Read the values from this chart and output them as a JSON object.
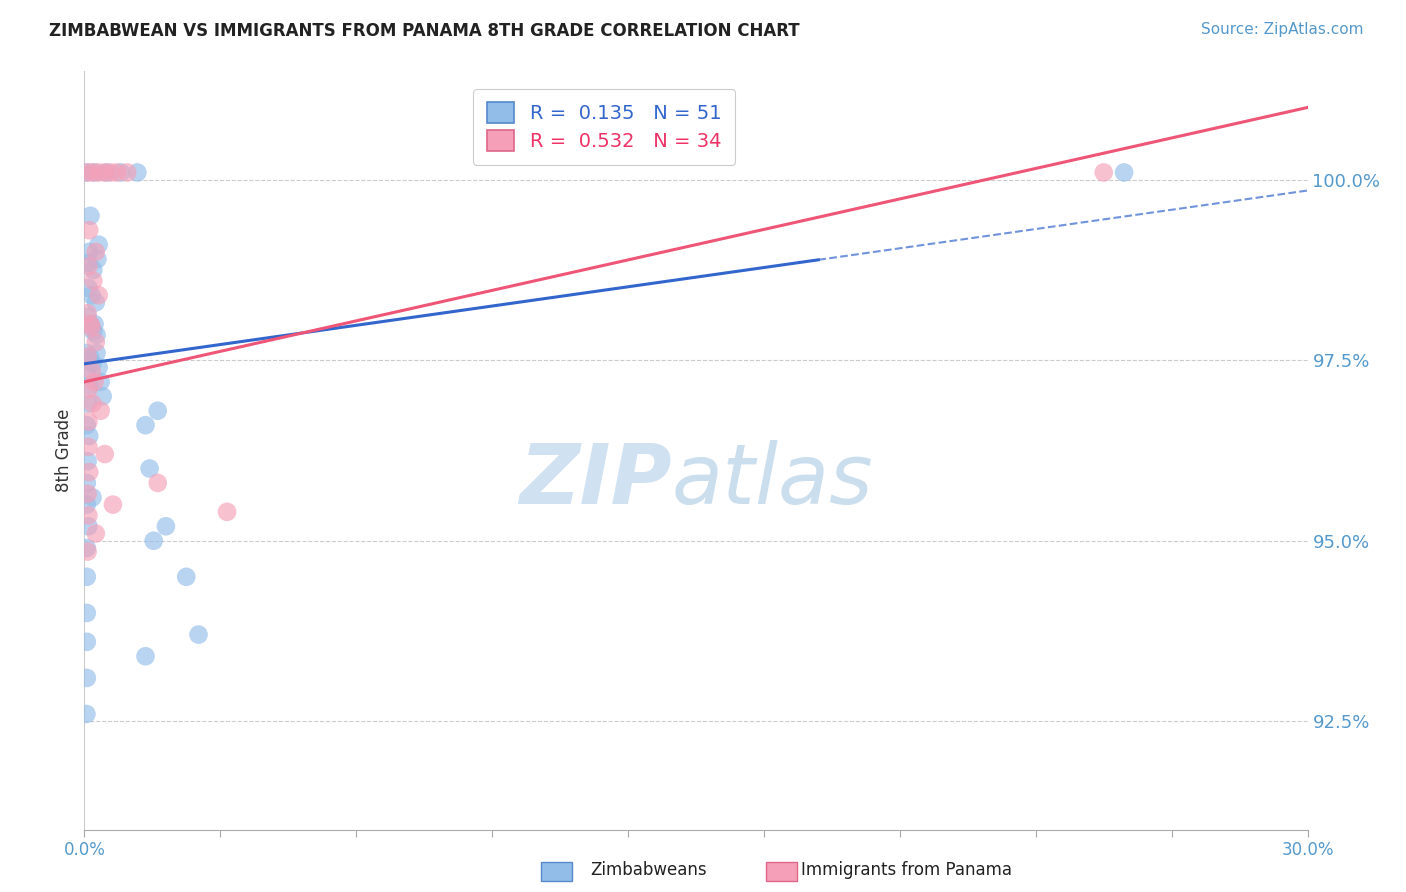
{
  "title": "ZIMBABWEAN VS IMMIGRANTS FROM PANAMA 8TH GRADE CORRELATION CHART",
  "source": "Source: ZipAtlas.com",
  "ylabel": "8th Grade",
  "yticks": [
    92.5,
    95.0,
    97.5,
    100.0
  ],
  "ytick_labels": [
    "92.5%",
    "95.0%",
    "97.5%",
    "100.0%"
  ],
  "xmin": 0.0,
  "xmax": 30.0,
  "ymin": 91.0,
  "ymax": 101.5,
  "blue_color": "#92BDE8",
  "pink_color": "#F5A0B8",
  "trend_blue": "#3366CC",
  "trend_pink": "#EE5577",
  "R_blue": 0.135,
  "N_blue": 51,
  "R_pink": 0.532,
  "N_pink": 34,
  "blue_trend_x": [
    0.0,
    30.0
  ],
  "blue_trend_y": [
    97.45,
    99.85
  ],
  "blue_dash_start": 18.0,
  "pink_trend_x": [
    0.0,
    30.0
  ],
  "pink_trend_y": [
    97.2,
    101.0
  ],
  "blue_points": [
    [
      0.05,
      100.1
    ],
    [
      0.25,
      100.1
    ],
    [
      0.55,
      100.1
    ],
    [
      0.9,
      100.1
    ],
    [
      1.3,
      100.1
    ],
    [
      0.15,
      99.5
    ],
    [
      0.12,
      99.0
    ],
    [
      0.35,
      99.1
    ],
    [
      0.1,
      98.85
    ],
    [
      0.22,
      98.75
    ],
    [
      0.32,
      98.9
    ],
    [
      0.1,
      98.5
    ],
    [
      0.18,
      98.4
    ],
    [
      0.28,
      98.3
    ],
    [
      0.08,
      98.1
    ],
    [
      0.15,
      98.0
    ],
    [
      0.22,
      97.9
    ],
    [
      0.3,
      97.85
    ],
    [
      0.06,
      97.6
    ],
    [
      0.14,
      97.55
    ],
    [
      0.2,
      97.45
    ],
    [
      0.06,
      97.3
    ],
    [
      0.12,
      97.15
    ],
    [
      0.08,
      96.9
    ],
    [
      0.06,
      96.6
    ],
    [
      0.12,
      96.45
    ],
    [
      0.08,
      96.1
    ],
    [
      0.06,
      95.8
    ],
    [
      0.06,
      95.5
    ],
    [
      0.1,
      95.2
    ],
    [
      0.06,
      94.9
    ],
    [
      0.06,
      94.5
    ],
    [
      0.06,
      94.0
    ],
    [
      0.06,
      93.6
    ],
    [
      0.06,
      93.1
    ],
    [
      0.25,
      98.0
    ],
    [
      0.3,
      97.6
    ],
    [
      0.35,
      97.4
    ],
    [
      0.4,
      97.2
    ],
    [
      0.45,
      97.0
    ],
    [
      1.5,
      96.6
    ],
    [
      1.6,
      96.0
    ],
    [
      1.7,
      95.0
    ],
    [
      1.8,
      96.8
    ],
    [
      2.0,
      95.2
    ],
    [
      2.5,
      94.5
    ],
    [
      0.05,
      92.6
    ],
    [
      1.5,
      93.4
    ],
    [
      2.8,
      93.7
    ],
    [
      25.5,
      100.1
    ],
    [
      0.2,
      95.6
    ]
  ],
  "pink_points": [
    [
      0.08,
      100.1
    ],
    [
      0.2,
      100.1
    ],
    [
      0.35,
      100.1
    ],
    [
      0.5,
      100.1
    ],
    [
      0.65,
      100.1
    ],
    [
      0.8,
      100.1
    ],
    [
      1.05,
      100.1
    ],
    [
      0.12,
      99.3
    ],
    [
      0.28,
      99.0
    ],
    [
      0.1,
      98.8
    ],
    [
      0.22,
      98.6
    ],
    [
      0.35,
      98.4
    ],
    [
      0.08,
      98.15
    ],
    [
      0.18,
      97.95
    ],
    [
      0.28,
      97.75
    ],
    [
      0.08,
      97.55
    ],
    [
      0.18,
      97.35
    ],
    [
      0.1,
      97.1
    ],
    [
      0.2,
      96.9
    ],
    [
      0.1,
      96.65
    ],
    [
      0.1,
      96.3
    ],
    [
      0.12,
      95.95
    ],
    [
      0.08,
      95.65
    ],
    [
      0.1,
      95.35
    ],
    [
      0.28,
      95.1
    ],
    [
      0.08,
      94.85
    ],
    [
      1.8,
      95.8
    ],
    [
      3.5,
      95.4
    ],
    [
      25.0,
      100.1
    ],
    [
      0.15,
      98.0
    ],
    [
      0.25,
      97.2
    ],
    [
      0.4,
      96.8
    ],
    [
      0.5,
      96.2
    ],
    [
      0.7,
      95.5
    ]
  ]
}
